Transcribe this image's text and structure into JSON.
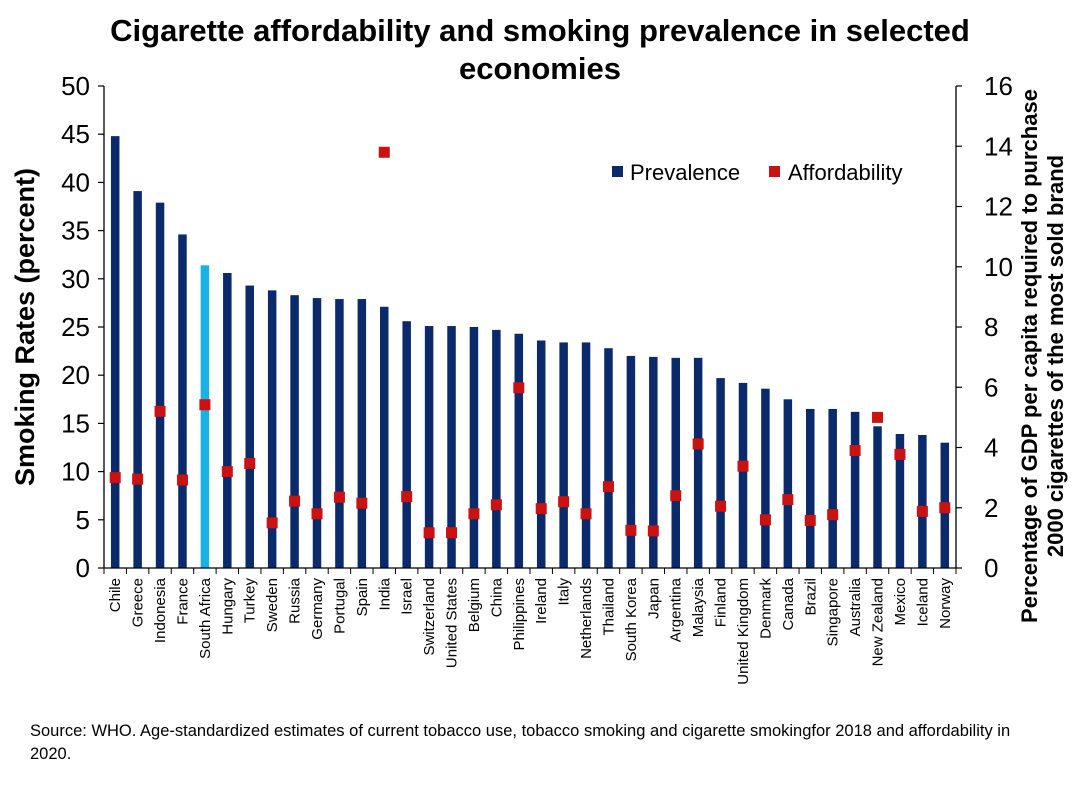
{
  "chart_data": {
    "type": "bar",
    "title": "Cigarette affordability and smoking prevalence in selected economies",
    "ylabel": "Smoking Rates (percent)",
    "y2label": [
      "Percentage of GDP per capita required to purchase",
      "2000 cigarettes of the most sold brand"
    ],
    "ylim": [
      0,
      50
    ],
    "y2lim": [
      0,
      16
    ],
    "yticks": [
      0,
      5,
      10,
      15,
      20,
      25,
      30,
      35,
      40,
      45,
      50
    ],
    "y2ticks": [
      0,
      2,
      4,
      6,
      8,
      10,
      12,
      14,
      16
    ],
    "legend_position": "top-right",
    "categories": [
      "Chile",
      "Greece",
      "Indonesia",
      "France",
      "South Africa",
      "Hungary",
      "Turkey",
      "Sweden",
      "Russia",
      "Germany",
      "Portugal",
      "Spain",
      "India",
      "Israel",
      "Switzerland",
      "United States",
      "Belgium",
      "China",
      "Philippines",
      "Ireland",
      "Italy",
      "Netherlands",
      "Thailand",
      "South Korea",
      "Japan",
      "Argentina",
      "Malaysia",
      "Finland",
      "United Kingdom",
      "Denmark",
      "Canada",
      "Brazil",
      "Singapore",
      "Australia",
      "New Zealand",
      "Mexico",
      "Iceland",
      "Norway"
    ],
    "highlight_category": "South Africa",
    "series": [
      {
        "name": "Prevalence",
        "type": "bar",
        "axis": "left",
        "color": "#0b2a6b",
        "highlight_color": "#1ab2e6",
        "values": [
          44.8,
          39.1,
          37.9,
          34.6,
          31.4,
          30.6,
          29.3,
          28.8,
          28.3,
          28.0,
          27.9,
          27.9,
          27.1,
          25.6,
          25.1,
          25.1,
          25.0,
          24.7,
          24.3,
          23.6,
          23.4,
          23.4,
          22.8,
          22.0,
          21.9,
          21.8,
          21.8,
          19.7,
          19.2,
          18.6,
          17.5,
          16.5,
          16.5,
          16.2,
          14.7,
          13.9,
          13.8,
          13.0
        ]
      },
      {
        "name": "Affordability",
        "type": "marker",
        "axis": "right",
        "color": "#cc1111",
        "values": [
          3.0,
          2.95,
          5.2,
          2.92,
          5.42,
          3.2,
          3.47,
          1.5,
          2.22,
          1.8,
          2.35,
          2.15,
          13.8,
          2.37,
          1.17,
          1.17,
          1.8,
          2.1,
          5.98,
          1.97,
          2.2,
          1.8,
          2.7,
          1.25,
          1.23,
          2.4,
          4.12,
          2.05,
          3.38,
          1.6,
          2.27,
          1.58,
          1.77,
          3.9,
          5.0,
          3.77,
          1.88,
          2.0
        ]
      }
    ]
  },
  "source_note": "Source: WHO. Age-standardized estimates of current tobacco use, tobacco smoking and cigarette smokingfor 2018 and affordability in 2020."
}
